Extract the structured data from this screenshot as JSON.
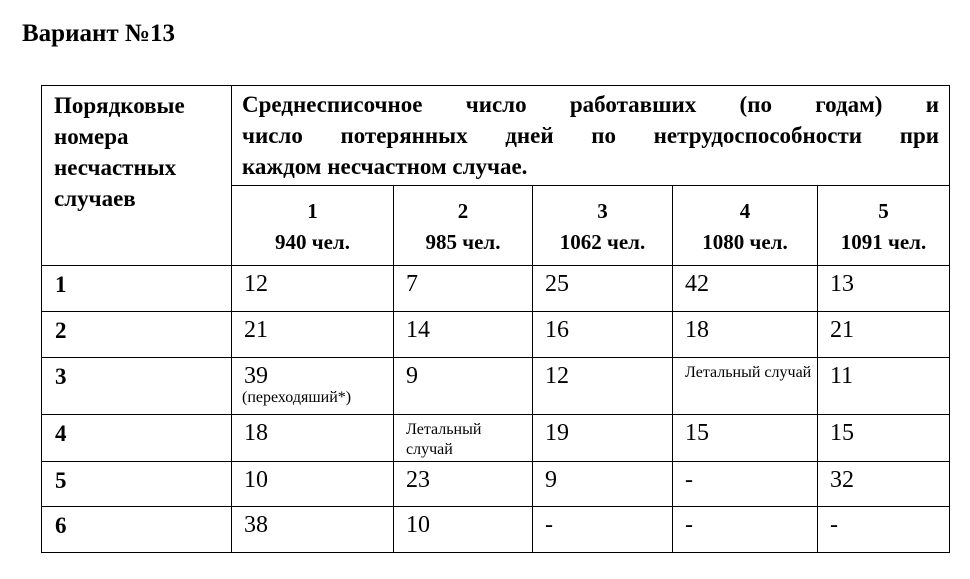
{
  "title": "Вариант №13",
  "table": {
    "row_header": "Порядковые номера несчастных случаев",
    "group_header_lines": [
      "Среднесписочное число работавших (по годам) и",
      "число потерянных дней по нетрудоспособности при",
      "каждом несчастном случае."
    ],
    "years": [
      {
        "num": "1",
        "staff": "940 чел."
      },
      {
        "num": "2",
        "staff": "985 чел."
      },
      {
        "num": "3",
        "staff": "1062 чел."
      },
      {
        "num": "4",
        "staff": "1080 чел."
      },
      {
        "num": "5",
        "staff": "1091 чел."
      }
    ],
    "rows": [
      {
        "n": "1",
        "cells": [
          "12",
          "7",
          "25",
          "42",
          "13"
        ]
      },
      {
        "n": "2",
        "cells": [
          "21",
          "14",
          "16",
          "18",
          "21"
        ]
      },
      {
        "n": "3",
        "cells": [
          "39",
          "9",
          "12",
          "Летальный случай",
          "11"
        ],
        "note": "(переходяший*)"
      },
      {
        "n": "4",
        "cells": [
          "18",
          "Летальный случай",
          "19",
          "15",
          "15"
        ]
      },
      {
        "n": "5",
        "cells": [
          "10",
          "23",
          "9",
          "-",
          "32"
        ]
      },
      {
        "n": "6",
        "cells": [
          "38",
          "10",
          "-",
          "-",
          "-"
        ]
      }
    ]
  }
}
